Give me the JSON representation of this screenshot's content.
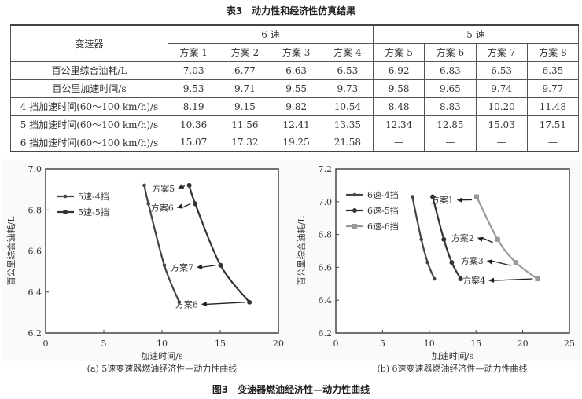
{
  "table": {
    "title": "表3　动力性和经济性仿真结果",
    "header_label": "变速器",
    "groups": [
      {
        "label": "6 速",
        "span": 4
      },
      {
        "label": "5 速",
        "span": 4
      }
    ],
    "columns": [
      "方案 1",
      "方案 2",
      "方案 3",
      "方案 4",
      "方案 5",
      "方案 6",
      "方案 7",
      "方案 8"
    ],
    "rows": [
      {
        "label": "百公里综合油耗/L",
        "values": [
          "7.03",
          "6.77",
          "6.63",
          "6.53",
          "6.92",
          "6.83",
          "6.53",
          "6.35"
        ]
      },
      {
        "label": "百公里加速时间/s",
        "values": [
          "9.53",
          "9.71",
          "9.55",
          "9.73",
          "9.58",
          "9.65",
          "9.74",
          "9.77"
        ]
      },
      {
        "label": "4 挡加速时间(60～100 km/h)/s",
        "values": [
          "8.19",
          "9.15",
          "9.82",
          "10.54",
          "8.48",
          "8.83",
          "10.20",
          "11.48"
        ]
      },
      {
        "label": "5 挡加速时间(60～100 km/h)/s",
        "values": [
          "10.36",
          "11.56",
          "12.41",
          "13.35",
          "12.34",
          "12.85",
          "15.03",
          "17.51"
        ]
      },
      {
        "label": "6 挡加速时间(60～100 km/h)/s",
        "values": [
          "15.07",
          "17.32",
          "19.25",
          "21.58",
          "—",
          "—",
          "—",
          "—"
        ]
      }
    ]
  },
  "figure": {
    "title": "图3　变速器燃油经济性—动力性曲线"
  },
  "chart_data": [
    {
      "type": "line",
      "id": "a",
      "caption": "(a) 5速变速器燃油经济性—动力性曲线",
      "xlabel": "加速时间/s",
      "ylabel": "百公里综合油耗/L",
      "xlim": [
        0,
        20
      ],
      "ylim": [
        6.2,
        7.0
      ],
      "xticks": [
        "0",
        "5",
        "10",
        "15",
        "20"
      ],
      "yticks": [
        "6.2",
        "6.4",
        "6.6",
        "6.8",
        "7.0"
      ],
      "grid": false,
      "legend_position": "upper-left",
      "series": [
        {
          "name": "5速-4挡",
          "color": "#444444",
          "marker": "diamond",
          "x": [
            8.48,
            8.83,
            10.2,
            11.48
          ],
          "y": [
            6.92,
            6.83,
            6.53,
            6.35
          ]
        },
        {
          "name": "5速-5挡",
          "color": "#333333",
          "marker": "circle",
          "x": [
            12.34,
            12.85,
            15.03,
            17.51
          ],
          "y": [
            6.92,
            6.83,
            6.53,
            6.35
          ]
        }
      ],
      "annotations": [
        {
          "text": "方案5",
          "x": 11.1,
          "y": 6.905
        },
        {
          "text": "方案6",
          "x": 11.0,
          "y": 6.81
        },
        {
          "text": "方案7",
          "x": 12.7,
          "y": 6.52
        },
        {
          "text": "方案8",
          "x": 13.1,
          "y": 6.34
        }
      ]
    },
    {
      "type": "line",
      "id": "b",
      "caption": "(b) 6速变速器燃油经济性—动力性曲线",
      "xlabel": "加速时间/s",
      "ylabel": "百公里综合油耗/L",
      "xlim": [
        0,
        25
      ],
      "ylim": [
        6.2,
        7.2
      ],
      "xticks": [
        "0",
        "5",
        "10",
        "15",
        "20",
        "25"
      ],
      "yticks": [
        "6.2",
        "6.4",
        "6.6",
        "6.8",
        "7.0",
        "7.2"
      ],
      "grid": false,
      "legend_position": "upper-left",
      "series": [
        {
          "name": "6速-4挡",
          "color": "#444444",
          "marker": "diamond",
          "x": [
            8.19,
            9.15,
            9.82,
            10.54
          ],
          "y": [
            7.03,
            6.77,
            6.63,
            6.53
          ]
        },
        {
          "name": "6速-5挡",
          "color": "#333333",
          "marker": "circle",
          "x": [
            10.36,
            11.56,
            12.41,
            13.35
          ],
          "y": [
            7.03,
            6.77,
            6.63,
            6.53
          ]
        },
        {
          "name": "6速-6挡",
          "color": "#999999",
          "marker": "square",
          "x": [
            15.07,
            17.32,
            19.25,
            21.58
          ],
          "y": [
            7.03,
            6.77,
            6.63,
            6.53
          ]
        }
      ],
      "annotations": [
        {
          "text": "方案1",
          "x": 12.6,
          "y": 7.01
        },
        {
          "text": "方案2",
          "x": 14.8,
          "y": 6.78
        },
        {
          "text": "方案3",
          "x": 15.8,
          "y": 6.64
        },
        {
          "text": "方案4",
          "x": 16.0,
          "y": 6.52
        }
      ]
    }
  ]
}
